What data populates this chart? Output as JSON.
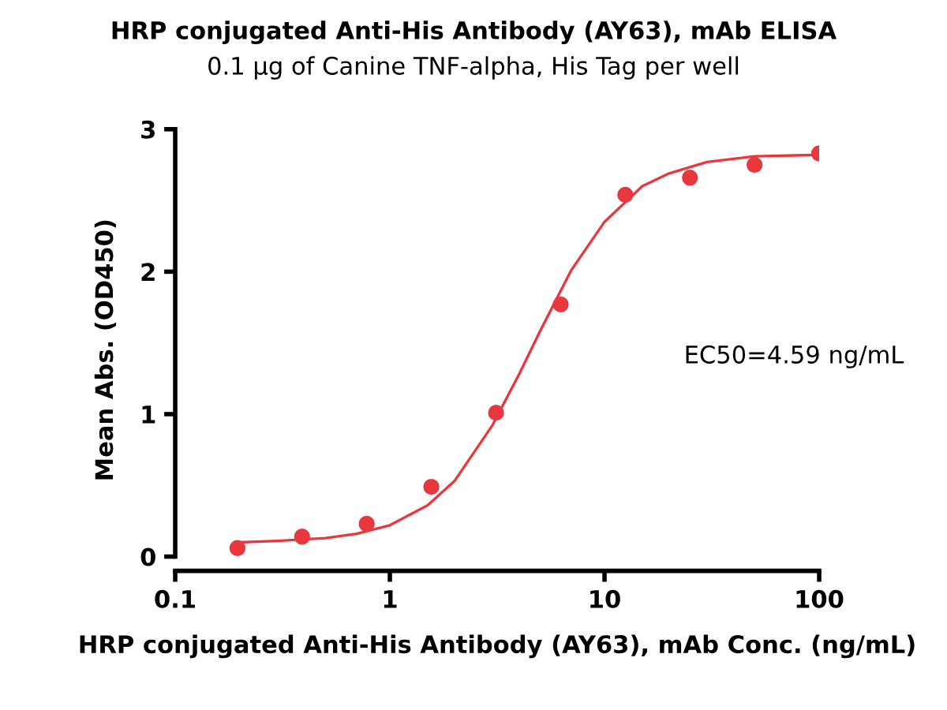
{
  "chart_data": {
    "type": "scatter",
    "title": "HRP conjugated Anti-His Antibody (AY63), mAb ELISA",
    "subtitle": "0.1 μg of Canine TNF-alpha, His Tag per well",
    "xlabel": "HRP conjugated Anti-His Antibody (AY63), mAb Conc. (ng/mL)",
    "ylabel": "Mean Abs. (OD450)",
    "annotations": [
      "EC50=4.59 ng/mL"
    ],
    "log": "x",
    "xlim": [
      0.1,
      100
    ],
    "xticks": [
      0.1,
      1,
      10,
      100
    ],
    "ylim": [
      -0.1,
      3
    ],
    "yticks": [
      0,
      1,
      2,
      3
    ],
    "grid": false,
    "legend": false,
    "series": [
      {
        "marker": "circle",
        "color": "#e8383d",
        "x": [
          0.195,
          0.39,
          0.78,
          1.56,
          3.125,
          6.25,
          12.5,
          25,
          50,
          100
        ],
        "values": [
          0.06,
          0.14,
          0.23,
          0.49,
          1.01,
          1.77,
          2.54,
          2.66,
          2.75,
          2.83
        ]
      },
      {
        "type": "line",
        "color": "#e8383d",
        "line_style": "solid",
        "marker": "none",
        "x": [
          0.2,
          0.3,
          0.5,
          0.7,
          1,
          1.5,
          2,
          3,
          4,
          5,
          7,
          10,
          15,
          20,
          30,
          50,
          100
        ],
        "values": [
          0.1,
          0.11,
          0.13,
          0.16,
          0.22,
          0.36,
          0.53,
          0.92,
          1.28,
          1.58,
          2.01,
          2.35,
          2.6,
          2.69,
          2.77,
          2.81,
          2.82
        ]
      }
    ]
  }
}
